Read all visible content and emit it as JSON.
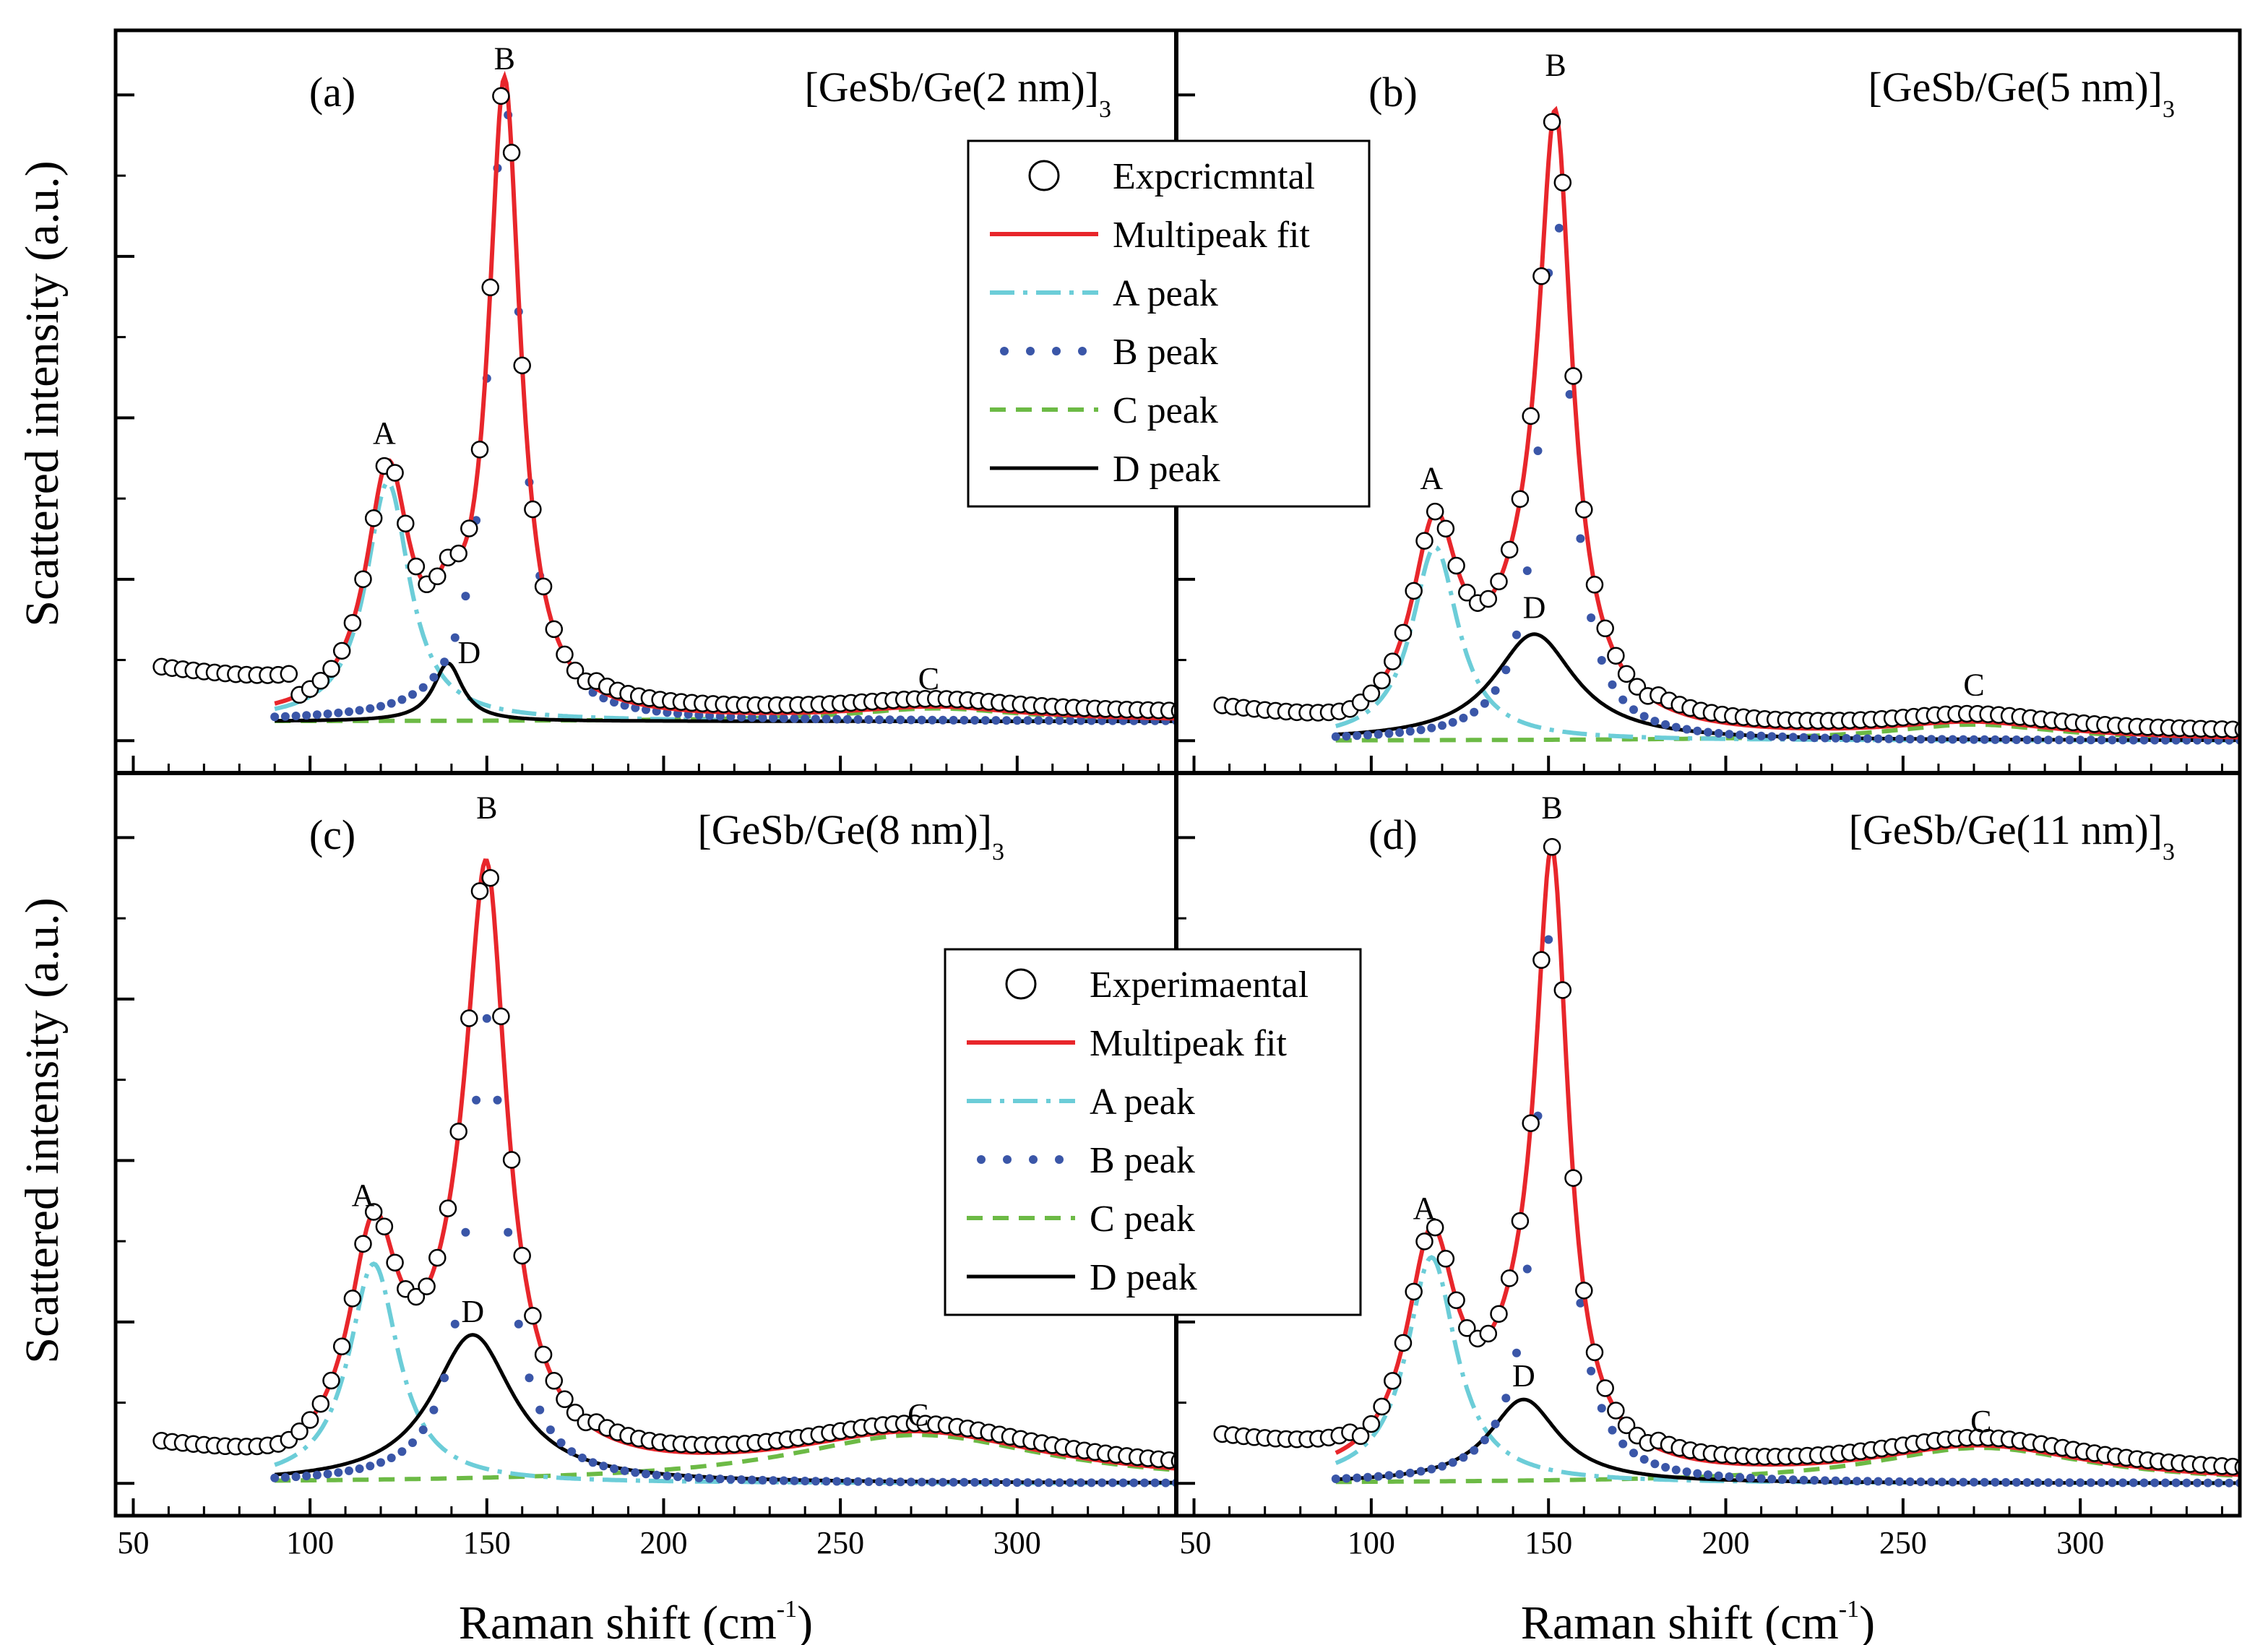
{
  "chart_data": {
    "type": "line",
    "layout": "2x2 panels with shared axes",
    "ylabel": "Scattered intensity (a.u.)",
    "xlabel_main": "Raman shift (cm",
    "xlabel_sup": "-1",
    "xlabel_close": ")",
    "x_tick_labels": [
      "50",
      "100",
      "150",
      "200",
      "250",
      "300"
    ],
    "x_tick_labels_right": [
      "",
      "100",
      "150",
      "200",
      "250",
      "300"
    ],
    "xlim": [
      45,
      345
    ],
    "ylim": [
      -0.05,
      1.1
    ],
    "legend_upper": {
      "position": "upper-middle",
      "entries": [
        {
          "symbol": "circle",
          "label": "Expcricmntal"
        },
        {
          "symbol": "red-solid",
          "label": "Multipeak fit"
        },
        {
          "symbol": "cyan-dashdot",
          "label": "A peak"
        },
        {
          "symbol": "blue-dot",
          "label": "B peak"
        },
        {
          "symbol": "green-dash",
          "label": "C peak"
        },
        {
          "symbol": "black-solid",
          "label": "D peak"
        }
      ]
    },
    "legend_lower": {
      "position": "lower-middle",
      "entries": [
        {
          "symbol": "circle",
          "label": "Experimaental"
        },
        {
          "symbol": "red-solid",
          "label": "Multipeak fit"
        },
        {
          "symbol": "cyan-dashdot",
          "label": "A peak"
        },
        {
          "symbol": "blue-dot",
          "label": "B peak"
        },
        {
          "symbol": "green-dash",
          "label": "C peak"
        },
        {
          "symbol": "black-solid",
          "label": "D peak"
        }
      ]
    },
    "series_colors": {
      "experimental": "#000000",
      "multipeak_fit": "#e8262b",
      "A": "#6ccdd8",
      "B": "#3a56a8",
      "C": "#6cba45",
      "D": "#000000"
    },
    "panels": [
      {
        "id": "a",
        "label": "(a)",
        "sample_main": "[GeSb/Ge(2 nm)]",
        "sample_sub": "3",
        "baseline": 0.03,
        "bg_plateau": 0.11,
        "peaks": {
          "A": {
            "center": 122,
            "height": 0.37,
            "width": 7.5
          },
          "B": {
            "center": 155,
            "height": 0.97,
            "width": 5.5
          },
          "C": {
            "center": 277,
            "height": 0.02,
            "width": 30
          },
          "D": {
            "center": 139,
            "height": 0.09,
            "width": 5
          }
        },
        "peak_labels": [
          {
            "text": "A",
            "x": 121,
            "y": 0.46
          },
          {
            "text": "B",
            "x": 155,
            "y": 1.04
          },
          {
            "text": "C",
            "x": 275,
            "y": 0.08
          },
          {
            "text": "D",
            "x": 145,
            "y": 0.12
          }
        ]
      },
      {
        "id": "b",
        "label": "(b)",
        "sample_main": "[GeSb/Ge(5 nm)]",
        "sample_sub": "3",
        "baseline": 0.0,
        "bg_plateau": 0.05,
        "peaks": {
          "A": {
            "center": 118,
            "height": 0.3,
            "width": 8
          },
          "B": {
            "center": 152,
            "height": 0.82,
            "width": 5.5
          },
          "C": {
            "center": 270,
            "height": 0.025,
            "width": 30
          },
          "D": {
            "center": 146,
            "height": 0.165,
            "width": 14
          }
        },
        "peak_labels": [
          {
            "text": "A",
            "x": 117,
            "y": 0.39
          },
          {
            "text": "B",
            "x": 152,
            "y": 1.03
          },
          {
            "text": "C",
            "x": 270,
            "y": 0.07
          },
          {
            "text": "D",
            "x": 146,
            "y": 0.19
          }
        ]
      },
      {
        "id": "c",
        "label": "(c)",
        "sample_main": "[GeSb/Ge(8 nm)]",
        "sample_sub": "3",
        "baseline": 0.0,
        "bg_plateau": 0.06,
        "peaks": {
          "A": {
            "center": 118,
            "height": 0.34,
            "width": 8.5
          },
          "B": {
            "center": 150,
            "height": 0.72,
            "width": 6.5
          },
          "C": {
            "center": 272,
            "height": 0.075,
            "width": 45
          },
          "D": {
            "center": 146,
            "height": 0.23,
            "width": 14
          }
        },
        "peak_labels": [
          {
            "text": "A",
            "x": 115,
            "y": 0.43
          },
          {
            "text": "B",
            "x": 150,
            "y": 1.03
          },
          {
            "text": "C",
            "x": 272,
            "y": 0.09
          },
          {
            "text": "D",
            "x": 146,
            "y": 0.25
          }
        ]
      },
      {
        "id": "d",
        "label": "(d)",
        "sample_main": "[GeSb/Ge(11 nm)]",
        "sample_sub": "3",
        "baseline": 0.0,
        "bg_plateau": 0.07,
        "peaks": {
          "A": {
            "center": 117,
            "height": 0.35,
            "width": 8.5
          },
          "B": {
            "center": 151,
            "height": 0.87,
            "width": 5.5
          },
          "C": {
            "center": 272,
            "height": 0.055,
            "width": 38
          },
          "D": {
            "center": 143,
            "height": 0.13,
            "width": 12
          }
        },
        "peak_labels": [
          {
            "text": "A",
            "x": 115,
            "y": 0.41
          },
          {
            "text": "B",
            "x": 151,
            "y": 1.03
          },
          {
            "text": "C",
            "x": 272,
            "y": 0.08
          },
          {
            "text": "D",
            "x": 143,
            "y": 0.15
          }
        ]
      }
    ]
  }
}
